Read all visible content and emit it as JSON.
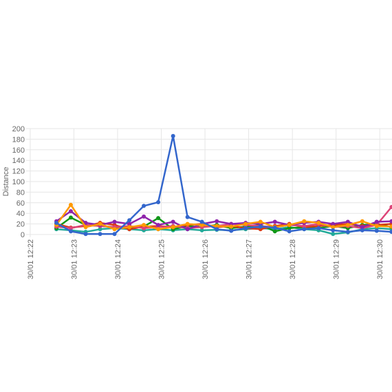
{
  "chart_data": {
    "type": "line",
    "y_label": "Distance",
    "x": [
      22.6,
      22.93,
      23.27,
      23.6,
      23.93,
      24.27,
      24.6,
      24.93,
      25.27,
      25.6,
      25.93,
      26.27,
      26.6,
      26.93,
      27.27,
      27.6,
      27.93,
      28.27,
      28.6,
      28.93,
      29.27,
      29.6,
      29.93,
      30.27
    ],
    "xlim": [
      21.97,
      30.28
    ],
    "xticks": [
      {
        "value": 22,
        "label": "30/01 12:22"
      },
      {
        "value": 23,
        "label": "30/01 12:23"
      },
      {
        "value": 24,
        "label": "30/01 12:24"
      },
      {
        "value": 25,
        "label": "30/01 12:25"
      },
      {
        "value": 26,
        "label": "30/01 12:26"
      },
      {
        "value": 27,
        "label": "30/01 12:27"
      },
      {
        "value": 28,
        "label": "30/01 12:28"
      },
      {
        "value": 29,
        "label": "30/01 12:29"
      },
      {
        "value": 30,
        "label": "30/01 12:30"
      }
    ],
    "ylim": [
      0,
      200
    ],
    "yticks": [
      0,
      20,
      40,
      60,
      80,
      100,
      120,
      140,
      160,
      180,
      200
    ],
    "grid": true,
    "series": [
      {
        "color": "#22aa99",
        "values": [
          10,
          8,
          5,
          10,
          12,
          10,
          8,
          10,
          8,
          10,
          8,
          9,
          8,
          10,
          12,
          10,
          14,
          10,
          8,
          1,
          4,
          10,
          12,
          10
        ]
      },
      {
        "color": "#109618",
        "values": [
          12,
          32,
          18,
          16,
          14,
          12,
          15,
          31,
          10,
          16,
          14,
          18,
          12,
          15,
          18,
          6,
          12,
          14,
          12,
          16,
          12,
          18,
          20,
          14
        ]
      },
      {
        "color": "#dc3912",
        "values": [
          20,
          13,
          16,
          22,
          18,
          10,
          15,
          16,
          14,
          18,
          20,
          14,
          16,
          12,
          10,
          16,
          20,
          14,
          16,
          18,
          20,
          16,
          18,
          20
        ]
      },
      {
        "color": "#dd4477",
        "values": [
          15,
          12,
          18,
          16,
          14,
          16,
          12,
          14,
          16,
          12,
          14,
          16,
          20,
          18,
          16,
          14,
          18,
          16,
          20,
          14,
          16,
          12,
          18,
          52
        ]
      },
      {
        "color": "#8e24aa",
        "values": [
          25,
          44,
          22,
          18,
          24,
          20,
          34,
          18,
          24,
          10,
          20,
          25,
          20,
          22,
          20,
          24,
          18,
          22,
          24,
          20,
          24,
          14,
          24,
          25
        ]
      },
      {
        "color": "#ff9900",
        "values": [
          18,
          56,
          14,
          20,
          10,
          14,
          18,
          10,
          14,
          20,
          18,
          16,
          15,
          20,
          24,
          14,
          18,
          25,
          22,
          14,
          18,
          25,
          16,
          15
        ]
      },
      {
        "color": "#3366cc",
        "values": [
          22,
          6,
          1,
          1,
          1,
          27,
          54,
          61,
          186,
          33,
          24,
          10,
          7,
          12,
          15,
          13,
          6,
          10,
          12,
          8,
          5,
          8,
          7,
          5
        ]
      }
    ]
  }
}
